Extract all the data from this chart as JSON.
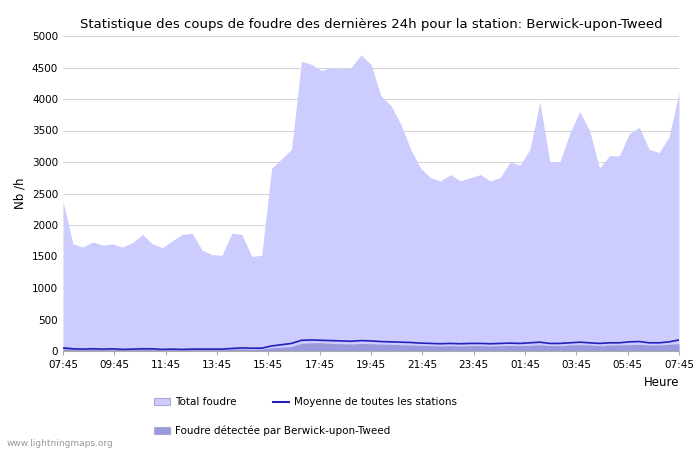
{
  "title": "Statistique des coups de foudre des dernières 24h pour la station: Berwick-upon-Tweed",
  "xlabel": "Heure",
  "ylabel": "Nb /h",
  "ylim": [
    0,
    5000
  ],
  "yticks": [
    0,
    500,
    1000,
    1500,
    2000,
    2500,
    3000,
    3500,
    4000,
    4500,
    5000
  ],
  "xtick_labels": [
    "07:45",
    "09:45",
    "11:45",
    "13:45",
    "15:45",
    "17:45",
    "19:45",
    "21:45",
    "23:45",
    "01:45",
    "03:45",
    "05:45",
    "07:45"
  ],
  "watermark": "www.lightningmaps.org",
  "color_total": "#ccccff",
  "color_detected": "#9999dd",
  "color_mean_line": "#2222bb",
  "background_color": "#ffffff",
  "grid_color": "#cccccc",
  "total_foudre": [
    2380,
    1700,
    1650,
    1730,
    1680,
    1700,
    1650,
    1720,
    1850,
    1700,
    1640,
    1750,
    1850,
    1870,
    1600,
    1530,
    1520,
    1870,
    1850,
    1500,
    1520,
    2900,
    3050,
    3200,
    4600,
    4550,
    4450,
    4500,
    4480,
    4500,
    4700,
    4550,
    4050,
    3900,
    3600,
    3200,
    2900,
    2750,
    2700,
    2800,
    2700,
    2750,
    2800,
    2700,
    2750,
    3000,
    2950,
    3200,
    3950,
    3000,
    3000,
    3450,
    3800,
    3500,
    2900,
    3100,
    3100,
    3450,
    3550,
    3200,
    3150,
    3400,
    4100
  ],
  "detected": [
    50,
    30,
    25,
    30,
    25,
    30,
    20,
    25,
    30,
    30,
    20,
    25,
    20,
    25,
    25,
    25,
    25,
    30,
    35,
    30,
    30,
    50,
    60,
    70,
    120,
    130,
    130,
    120,
    115,
    110,
    120,
    115,
    110,
    105,
    100,
    95,
    90,
    85,
    80,
    85,
    80,
    85,
    85,
    80,
    85,
    90,
    85,
    90,
    100,
    85,
    85,
    95,
    100,
    95,
    85,
    95,
    95,
    100,
    105,
    95,
    95,
    105,
    115
  ],
  "mean_line": [
    50,
    35,
    30,
    35,
    30,
    35,
    25,
    30,
    35,
    35,
    25,
    30,
    25,
    30,
    30,
    30,
    30,
    40,
    50,
    45,
    45,
    80,
    100,
    120,
    170,
    175,
    170,
    165,
    160,
    155,
    165,
    160,
    150,
    145,
    140,
    135,
    125,
    120,
    115,
    120,
    115,
    120,
    120,
    115,
    120,
    125,
    120,
    130,
    140,
    120,
    120,
    130,
    140,
    130,
    120,
    130,
    130,
    145,
    150,
    130,
    130,
    145,
    175
  ]
}
